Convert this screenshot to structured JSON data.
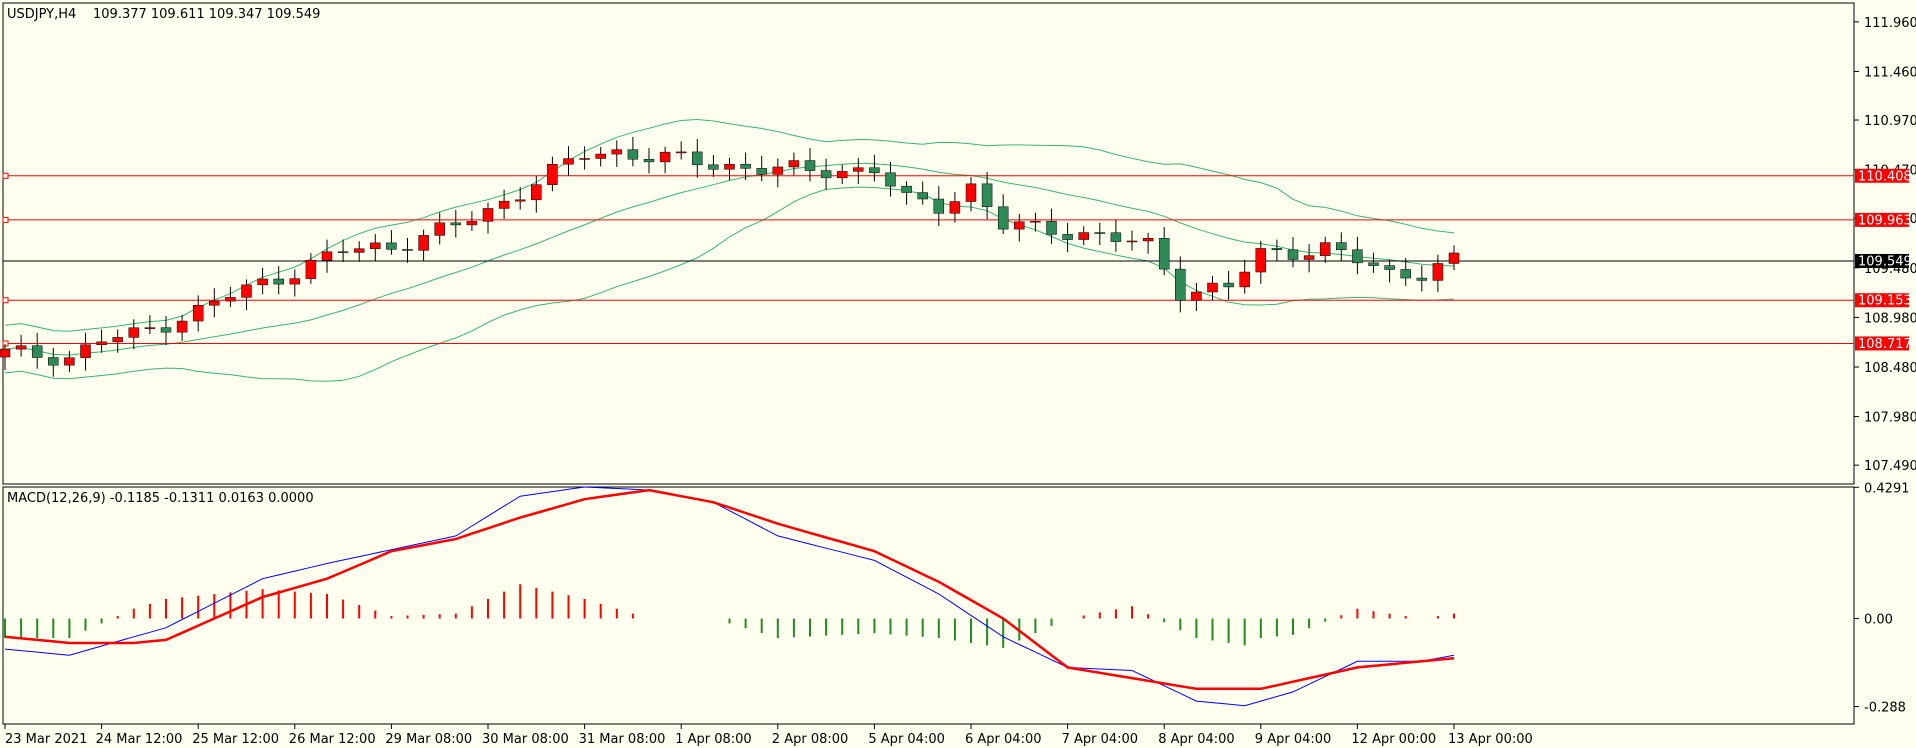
{
  "chart_data": [
    {
      "type": "candlestick",
      "title": "USDJPY,H4",
      "ohlc_header": "109.377 109.611 109.347 109.549",
      "y_ticks": [
        "111.960",
        "111.460",
        "110.970",
        "110.470",
        "109.980",
        "109.480",
        "108.980",
        "108.480",
        "107.980",
        "107.490"
      ],
      "ylim": [
        107.3,
        112.15
      ],
      "x_labels": [
        "23 Mar 2021",
        "24 Mar 12:00",
        "25 Mar 12:00",
        "26 Mar 12:00",
        "29 Mar 08:00",
        "30 Mar 08:00",
        "31 Mar 08:00",
        "1 Apr 08:00",
        "2 Apr 08:00",
        "5 Apr 04:00",
        "6 Apr 04:00",
        "7 Apr 04:00",
        "8 Apr 04:00",
        "9 Apr 04:00",
        "12 Apr 00:00",
        "13 Apr 00:00"
      ],
      "x_label_index": [
        0,
        6,
        12,
        18,
        24,
        30,
        36,
        42,
        48,
        54,
        60,
        66,
        72,
        78,
        84,
        90
      ],
      "horizontal_lines": [
        {
          "label": "110.408",
          "value": 110.408,
          "color": "#ff0000"
        },
        {
          "label": "109.963",
          "value": 109.963,
          "color": "#ff0000"
        },
        {
          "label": "109.549",
          "value": 109.549,
          "color": "#000000"
        },
        {
          "label": "109.153",
          "value": 109.153,
          "color": "#ff0000"
        },
        {
          "label": "108.717",
          "value": 108.717,
          "color": "#ff0000"
        }
      ],
      "bollinger_bands_color": "#3cb371",
      "bull_color": "#ff0000",
      "bear_color": "#2e8b57",
      "candles_count": 91
    },
    {
      "type": "bar+line",
      "title": "MACD(12,26,9) -0.1185 -0.1311 0.0163 0.0000",
      "y_ticks": [
        "0.4291",
        "0.00",
        "-0.288"
      ],
      "ylim": [
        -0.345,
        0.43
      ],
      "macd_color": "#0000ff",
      "signal_color": "#ff0000",
      "hist_pos_color": "#ff0000",
      "hist_neg_color": "#228b22",
      "macd_knots": [
        [
          0,
          -0.1
        ],
        [
          4,
          -0.12
        ],
        [
          6,
          -0.09
        ],
        [
          10,
          -0.03
        ],
        [
          16,
          0.13
        ],
        [
          20,
          0.18
        ],
        [
          28,
          0.27
        ],
        [
          32,
          0.4
        ],
        [
          36,
          0.43
        ],
        [
          40,
          0.42
        ],
        [
          44,
          0.38
        ],
        [
          48,
          0.27
        ],
        [
          54,
          0.19
        ],
        [
          58,
          0.08
        ],
        [
          62,
          -0.06
        ],
        [
          66,
          -0.16
        ],
        [
          70,
          -0.17
        ],
        [
          74,
          -0.27
        ],
        [
          77,
          -0.285
        ],
        [
          80,
          -0.24
        ],
        [
          84,
          -0.14
        ],
        [
          88,
          -0.14
        ],
        [
          90,
          -0.12
        ]
      ],
      "signal_knots": [
        [
          0,
          -0.06
        ],
        [
          4,
          -0.08
        ],
        [
          8,
          -0.08
        ],
        [
          10,
          -0.07
        ],
        [
          16,
          0.07
        ],
        [
          20,
          0.13
        ],
        [
          24,
          0.22
        ],
        [
          28,
          0.26
        ],
        [
          32,
          0.33
        ],
        [
          36,
          0.39
        ],
        [
          40,
          0.42
        ],
        [
          44,
          0.38
        ],
        [
          48,
          0.31
        ],
        [
          54,
          0.22
        ],
        [
          58,
          0.12
        ],
        [
          62,
          0.0
        ],
        [
          66,
          -0.16
        ],
        [
          70,
          -0.195
        ],
        [
          74,
          -0.23
        ],
        [
          78,
          -0.23
        ],
        [
          84,
          -0.16
        ],
        [
          90,
          -0.13
        ]
      ]
    }
  ]
}
